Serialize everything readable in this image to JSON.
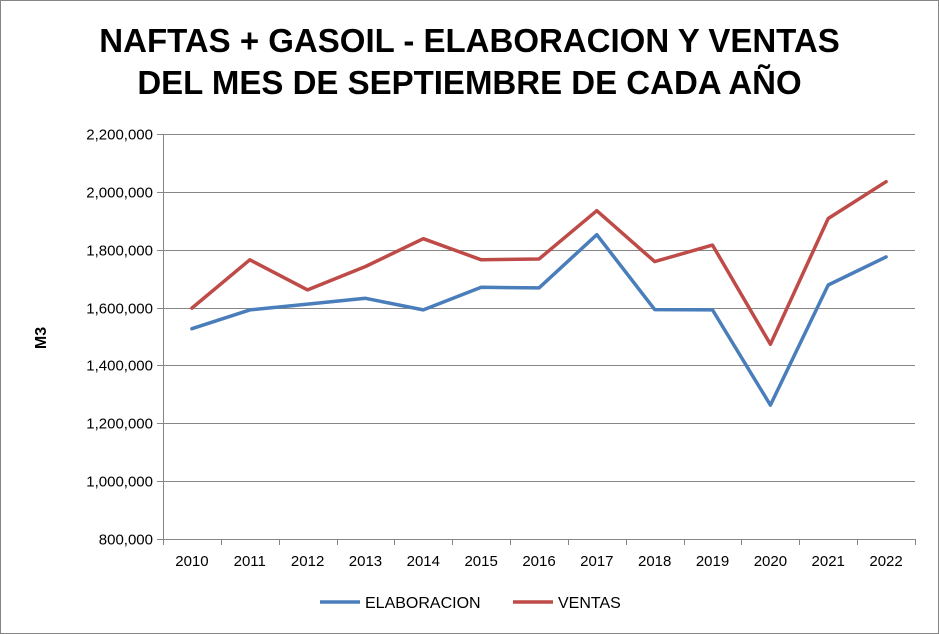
{
  "chart_data": {
    "type": "line",
    "title_line1": "NAFTAS + GASOIL - ELABORACION Y VENTAS",
    "title_line2": "DEL MES DE SEPTIEMBRE DE CADA AÑO",
    "xlabel": "",
    "ylabel": "M3",
    "ylim": [
      800000,
      2200000
    ],
    "yticks": [
      800000,
      1000000,
      1200000,
      1400000,
      1600000,
      1800000,
      2000000,
      2200000
    ],
    "ytick_labels": [
      "800,000",
      "1,000,000",
      "1,200,000",
      "1,400,000",
      "1,600,000",
      "1,800,000",
      "2,000,000",
      "2,200,000"
    ],
    "categories": [
      "2010",
      "2011",
      "2012",
      "2013",
      "2014",
      "2015",
      "2016",
      "2017",
      "2018",
      "2019",
      "2020",
      "2021",
      "2022"
    ],
    "grid": true,
    "legend_position": "bottom",
    "series": [
      {
        "name": "ELABORACION",
        "color": "#4a7ebb",
        "values": [
          1527000,
          1592000,
          1612000,
          1632000,
          1592000,
          1670000,
          1668000,
          1852000,
          1593000,
          1592000,
          1263000,
          1678000,
          1775000
        ]
      },
      {
        "name": "VENTAS",
        "color": "#be4b48",
        "values": [
          1598000,
          1765000,
          1661000,
          1742000,
          1838000,
          1765000,
          1768000,
          1935000,
          1759000,
          1816000,
          1473000,
          1908000,
          2035000
        ]
      }
    ]
  }
}
